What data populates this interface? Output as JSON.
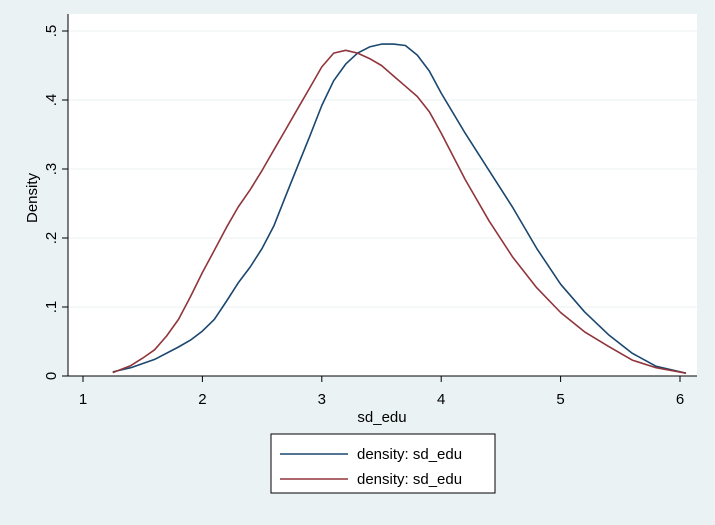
{
  "chart_data": {
    "type": "line",
    "xlabel": "sd_edu",
    "ylabel": "Density",
    "xlim": [
      1.0,
      6.1
    ],
    "ylim": [
      0,
      0.5
    ],
    "x_ticks": [
      1,
      2,
      3,
      4,
      5,
      6
    ],
    "x_tick_labels": [
      "1",
      "2",
      "3",
      "4",
      "5",
      "6"
    ],
    "y_ticks": [
      0,
      0.1,
      0.2,
      0.3,
      0.4,
      0.5
    ],
    "y_tick_labels": [
      "0",
      ".1",
      ".2",
      ".3",
      ".4",
      ".5"
    ],
    "grid": "horizontal",
    "legend_position": "bottom",
    "series": [
      {
        "name": "density: sd_edu",
        "color": "#1a476f",
        "x": [
          1.25,
          1.4,
          1.6,
          1.8,
          1.9,
          2.0,
          2.1,
          2.2,
          2.3,
          2.4,
          2.5,
          2.6,
          2.7,
          2.8,
          2.9,
          3.0,
          3.1,
          3.2,
          3.3,
          3.4,
          3.5,
          3.6,
          3.7,
          3.8,
          3.9,
          4.0,
          4.2,
          4.4,
          4.6,
          4.8,
          5.0,
          5.2,
          5.4,
          5.6,
          5.8,
          6.05
        ],
        "y": [
          0.006,
          0.012,
          0.024,
          0.042,
          0.052,
          0.065,
          0.082,
          0.108,
          0.135,
          0.158,
          0.185,
          0.218,
          0.262,
          0.305,
          0.348,
          0.392,
          0.428,
          0.452,
          0.468,
          0.477,
          0.481,
          0.481,
          0.479,
          0.465,
          0.442,
          0.41,
          0.352,
          0.298,
          0.244,
          0.185,
          0.133,
          0.093,
          0.06,
          0.033,
          0.014,
          0.004
        ]
      },
      {
        "name": "density: sd_edu",
        "color": "#90353b",
        "x": [
          1.25,
          1.4,
          1.5,
          1.6,
          1.7,
          1.8,
          1.9,
          2.0,
          2.1,
          2.2,
          2.3,
          2.4,
          2.5,
          2.6,
          2.7,
          2.8,
          2.9,
          3.0,
          3.1,
          3.2,
          3.3,
          3.4,
          3.5,
          3.6,
          3.7,
          3.8,
          3.9,
          4.0,
          4.2,
          4.4,
          4.6,
          4.8,
          5.0,
          5.2,
          5.4,
          5.6,
          5.8,
          6.05
        ],
        "y": [
          0.005,
          0.015,
          0.026,
          0.038,
          0.058,
          0.082,
          0.115,
          0.15,
          0.182,
          0.215,
          0.245,
          0.27,
          0.298,
          0.328,
          0.358,
          0.388,
          0.418,
          0.448,
          0.468,
          0.472,
          0.468,
          0.46,
          0.45,
          0.435,
          0.42,
          0.405,
          0.383,
          0.352,
          0.285,
          0.225,
          0.172,
          0.128,
          0.092,
          0.064,
          0.043,
          0.023,
          0.012,
          0.004
        ]
      }
    ]
  }
}
